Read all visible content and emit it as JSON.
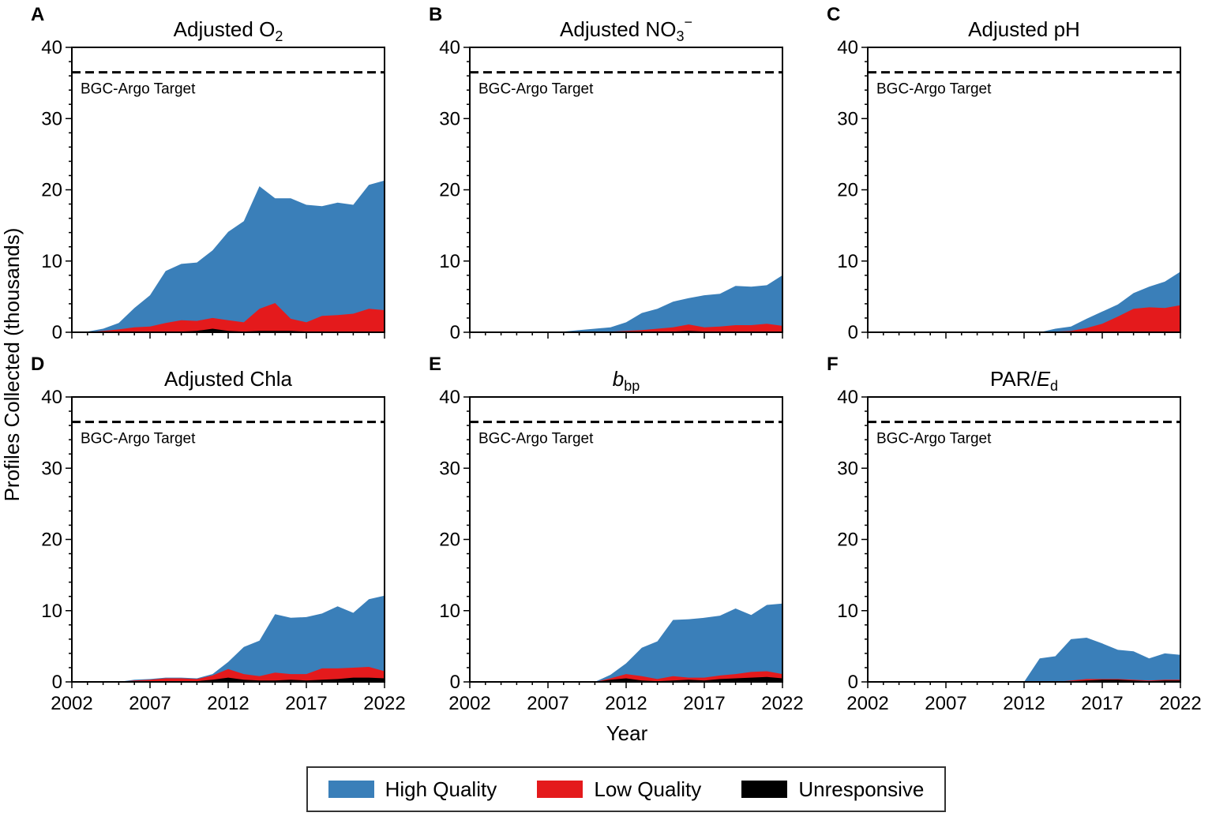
{
  "figure": {
    "ylabel": "Profiles Collected (thousands)",
    "xlabel": "Year",
    "target_label": "BGC-Argo Target",
    "target_value": 36.5
  },
  "legend": {
    "items": [
      {
        "label": "High Quality",
        "color": "#3a7fb9"
      },
      {
        "label": "Low Quality",
        "color": "#e41a1c"
      },
      {
        "label": "Unresponsive",
        "color": "#000000"
      }
    ]
  },
  "chart_data": [
    {
      "type": "area",
      "letter": "A",
      "title": "Adjusted O",
      "title_sub": "2",
      "title_sup": "",
      "title_italic": "",
      "title_pre": "",
      "x": [
        2002,
        2003,
        2004,
        2005,
        2006,
        2007,
        2008,
        2009,
        2010,
        2011,
        2012,
        2013,
        2014,
        2015,
        2016,
        2017,
        2018,
        2019,
        2020,
        2021,
        2022
      ],
      "xlim": [
        2002,
        2022
      ],
      "ylim": [
        0,
        40
      ],
      "xticks": [
        2002,
        2007,
        2012,
        2017,
        2022
      ],
      "yticks": [
        0,
        10,
        20,
        30,
        40
      ],
      "series": [
        {
          "name": "High Quality",
          "values": [
            0,
            0.1,
            0.5,
            1.3,
            3.4,
            5.2,
            8.6,
            9.6,
            9.8,
            11.5,
            14.1,
            15.6,
            20.5,
            18.8,
            18.8,
            17.9,
            17.7,
            18.2,
            17.9,
            20.7,
            21.3
          ]
        },
        {
          "name": "Low Quality",
          "values": [
            0,
            0,
            0.2,
            0.4,
            0.7,
            0.8,
            1.3,
            1.7,
            1.6,
            2.0,
            1.7,
            1.4,
            3.3,
            4.1,
            1.9,
            1.4,
            2.3,
            2.4,
            2.6,
            3.3,
            3.1
          ]
        },
        {
          "name": "Unresponsive",
          "values": [
            0,
            0,
            0,
            0,
            0,
            0,
            0.1,
            0.1,
            0.2,
            0.5,
            0.2,
            0.1,
            0.2,
            0.2,
            0.2,
            0.1,
            0.1,
            0.1,
            0.1,
            0.1,
            0.1
          ]
        }
      ]
    },
    {
      "type": "area",
      "letter": "B",
      "title": "Adjusted NO",
      "title_sub": "3",
      "title_sup": "−",
      "title_italic": "",
      "title_pre": "",
      "x": [
        2002,
        2003,
        2004,
        2005,
        2006,
        2007,
        2008,
        2009,
        2010,
        2011,
        2012,
        2013,
        2014,
        2015,
        2016,
        2017,
        2018,
        2019,
        2020,
        2021,
        2022
      ],
      "xlim": [
        2002,
        2022
      ],
      "ylim": [
        0,
        40
      ],
      "xticks": [
        2002,
        2007,
        2012,
        2017,
        2022
      ],
      "yticks": [
        0,
        10,
        20,
        30,
        40
      ],
      "series": [
        {
          "name": "High Quality",
          "values": [
            0,
            0,
            0,
            0,
            0,
            0,
            0.1,
            0.3,
            0.5,
            0.7,
            1.4,
            2.7,
            3.3,
            4.3,
            4.8,
            5.2,
            5.4,
            6.5,
            6.4,
            6.6,
            8.0
          ]
        },
        {
          "name": "Low Quality",
          "values": [
            0,
            0,
            0,
            0,
            0,
            0,
            0,
            0,
            0.1,
            0.1,
            0.2,
            0.3,
            0.5,
            0.7,
            1.1,
            0.7,
            0.8,
            1.0,
            1.0,
            1.2,
            0.9
          ]
        },
        {
          "name": "Unresponsive",
          "values": [
            0,
            0,
            0,
            0,
            0,
            0,
            0,
            0,
            0,
            0,
            0,
            0,
            0,
            0.1,
            0.2,
            0.1,
            0.1,
            0.1,
            0.1,
            0.1,
            0.1
          ]
        }
      ]
    },
    {
      "type": "area",
      "letter": "C",
      "title": "Adjusted pH",
      "title_sub": "",
      "title_sup": "",
      "title_italic": "",
      "title_pre": "",
      "x": [
        2002,
        2003,
        2004,
        2005,
        2006,
        2007,
        2008,
        2009,
        2010,
        2011,
        2012,
        2013,
        2014,
        2015,
        2016,
        2017,
        2018,
        2019,
        2020,
        2021,
        2022
      ],
      "xlim": [
        2002,
        2022
      ],
      "ylim": [
        0,
        40
      ],
      "xticks": [
        2002,
        2007,
        2012,
        2017,
        2022
      ],
      "yticks": [
        0,
        10,
        20,
        30,
        40
      ],
      "series": [
        {
          "name": "High Quality",
          "values": [
            0,
            0,
            0,
            0,
            0,
            0,
            0,
            0,
            0,
            0,
            0,
            0,
            0.5,
            0.8,
            1.9,
            2.9,
            3.9,
            5.5,
            6.4,
            7.1,
            8.5
          ]
        },
        {
          "name": "Low Quality",
          "values": [
            0,
            0,
            0,
            0,
            0,
            0,
            0,
            0,
            0,
            0,
            0,
            0,
            0.1,
            0.2,
            0.6,
            1.2,
            2.2,
            3.3,
            3.5,
            3.4,
            3.8
          ]
        },
        {
          "name": "Unresponsive",
          "values": [
            0,
            0,
            0,
            0,
            0,
            0,
            0,
            0,
            0,
            0,
            0,
            0,
            0,
            0,
            0,
            0,
            0,
            0,
            0,
            0,
            0
          ]
        }
      ]
    },
    {
      "type": "area",
      "letter": "D",
      "title": "Adjusted Chla",
      "title_sub": "",
      "title_sup": "",
      "title_italic": "",
      "title_pre": "",
      "x": [
        2002,
        2003,
        2004,
        2005,
        2006,
        2007,
        2008,
        2009,
        2010,
        2011,
        2012,
        2013,
        2014,
        2015,
        2016,
        2017,
        2018,
        2019,
        2020,
        2021,
        2022
      ],
      "xlim": [
        2002,
        2022
      ],
      "ylim": [
        0,
        40
      ],
      "xticks": [
        2002,
        2007,
        2012,
        2017,
        2022
      ],
      "yticks": [
        0,
        10,
        20,
        30,
        40
      ],
      "series": [
        {
          "name": "High Quality",
          "values": [
            0,
            0,
            0,
            0,
            0.3,
            0.4,
            0.6,
            0.6,
            0.5,
            1.1,
            2.8,
            4.9,
            5.8,
            9.5,
            9.0,
            9.1,
            9.6,
            10.6,
            9.7,
            11.6,
            12.1
          ]
        },
        {
          "name": "Low Quality",
          "values": [
            0,
            0,
            0,
            0,
            0.2,
            0.3,
            0.5,
            0.5,
            0.4,
            0.9,
            1.8,
            1.1,
            0.8,
            1.3,
            1.1,
            1.1,
            1.9,
            1.9,
            2.0,
            2.1,
            1.5
          ]
        },
        {
          "name": "Unresponsive",
          "values": [
            0,
            0,
            0,
            0,
            0,
            0,
            0,
            0,
            0.1,
            0.3,
            0.6,
            0.3,
            0.2,
            0.2,
            0.3,
            0.2,
            0.3,
            0.4,
            0.6,
            0.6,
            0.5
          ]
        }
      ]
    },
    {
      "type": "area",
      "letter": "E",
      "title": "",
      "title_sub": "bp",
      "title_sup": "",
      "title_italic": "b",
      "title_pre": "",
      "x": [
        2002,
        2003,
        2004,
        2005,
        2006,
        2007,
        2008,
        2009,
        2010,
        2011,
        2012,
        2013,
        2014,
        2015,
        2016,
        2017,
        2018,
        2019,
        2020,
        2021,
        2022
      ],
      "xlim": [
        2002,
        2022
      ],
      "ylim": [
        0,
        40
      ],
      "xticks": [
        2002,
        2007,
        2012,
        2017,
        2022
      ],
      "yticks": [
        0,
        10,
        20,
        30,
        40
      ],
      "series": [
        {
          "name": "High Quality",
          "values": [
            0,
            0,
            0,
            0,
            0,
            0,
            0,
            0,
            0,
            1.0,
            2.6,
            4.8,
            5.7,
            8.7,
            8.8,
            9.0,
            9.3,
            10.3,
            9.4,
            10.8,
            11.0
          ]
        },
        {
          "name": "Low Quality",
          "values": [
            0,
            0,
            0,
            0,
            0,
            0,
            0,
            0,
            0,
            0.5,
            1.1,
            0.8,
            0.4,
            0.8,
            0.6,
            0.6,
            0.9,
            1.1,
            1.4,
            1.5,
            1.1
          ]
        },
        {
          "name": "Unresponsive",
          "values": [
            0,
            0,
            0,
            0,
            0,
            0,
            0,
            0,
            0,
            0.3,
            0.5,
            0.2,
            0.1,
            0.2,
            0.3,
            0.2,
            0.4,
            0.5,
            0.6,
            0.7,
            0.5
          ]
        }
      ]
    },
    {
      "type": "area",
      "letter": "F",
      "title": "",
      "title_sub": "d",
      "title_sup": "",
      "title_italic": "E",
      "title_pre": "PAR/",
      "x": [
        2002,
        2003,
        2004,
        2005,
        2006,
        2007,
        2008,
        2009,
        2010,
        2011,
        2012,
        2013,
        2014,
        2015,
        2016,
        2017,
        2018,
        2019,
        2020,
        2021,
        2022
      ],
      "xlim": [
        2002,
        2022
      ],
      "ylim": [
        0,
        40
      ],
      "xticks": [
        2002,
        2007,
        2012,
        2017,
        2022
      ],
      "yticks": [
        0,
        10,
        20,
        30,
        40
      ],
      "series": [
        {
          "name": "High Quality",
          "values": [
            0,
            0,
            0,
            0,
            0,
            0,
            0,
            0,
            0,
            0,
            0,
            3.3,
            3.6,
            6.0,
            6.2,
            5.4,
            4.5,
            4.3,
            3.3,
            4.0,
            3.8
          ]
        },
        {
          "name": "Low Quality",
          "values": [
            0,
            0,
            0,
            0,
            0,
            0,
            0,
            0,
            0,
            0,
            0,
            0,
            0,
            0.2,
            0.4,
            0.4,
            0.4,
            0.3,
            0.2,
            0.3,
            0.3
          ]
        },
        {
          "name": "Unresponsive",
          "values": [
            0,
            0,
            0,
            0,
            0,
            0,
            0,
            0,
            0,
            0,
            0,
            0,
            0,
            0.1,
            0.2,
            0.3,
            0.3,
            0.2,
            0.1,
            0.2,
            0.2
          ]
        }
      ]
    }
  ]
}
